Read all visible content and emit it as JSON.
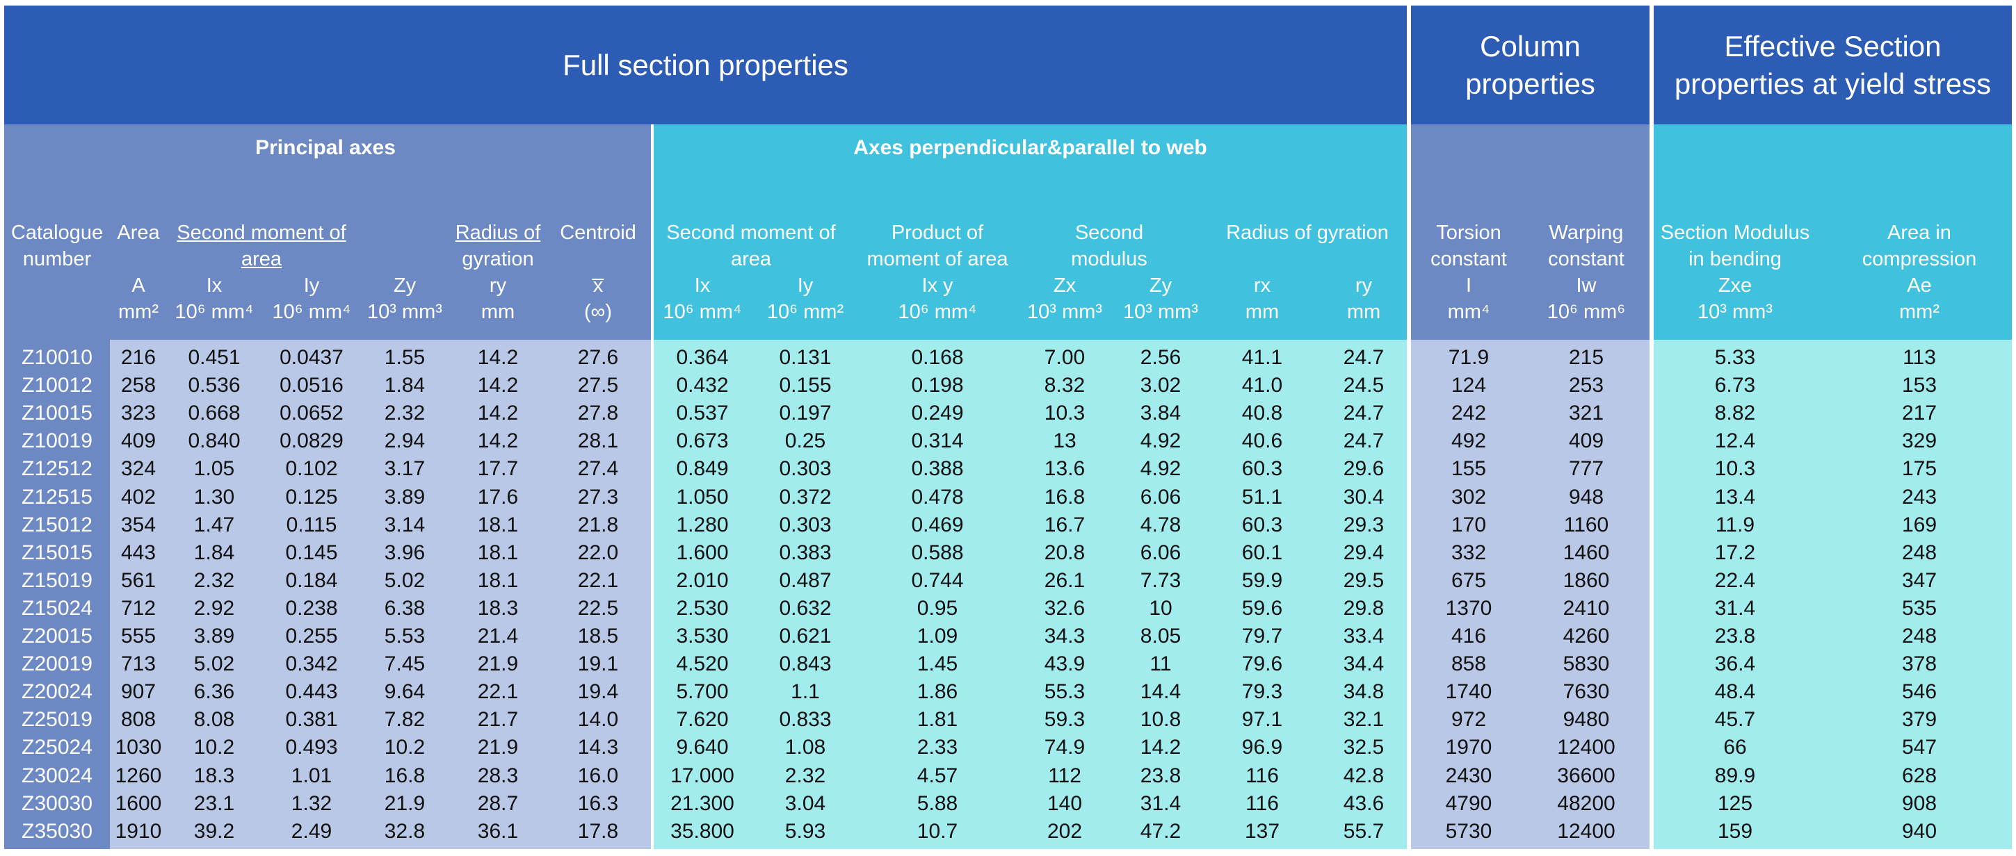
{
  "titles": {
    "full": "Full section properties",
    "column_l1": "Column",
    "column_l2": "properties",
    "eff_l1": "Effective Section",
    "eff_l2": "properties at yield stress"
  },
  "subtitles": {
    "principal": "Principal axes",
    "web": "Axes perpendicular&parallel to web"
  },
  "headers": {
    "cat_l1": "Catalogue",
    "cat_l2": "number",
    "area": "Area",
    "area_sym": "A",
    "area_unit": "mm²",
    "smoa_l1": "Second moment of",
    "smoa_l2": "area",
    "ix": "Ix",
    "ix_unit": "10⁶ mm⁴",
    "iy": "Iy",
    "iy_unit": "10⁶ mm⁴",
    "zy": "Zy",
    "zy_unit": "10³ mm³",
    "rog_l1": "Radius of",
    "rog_l2": "gyration",
    "ry": "ry",
    "ry_unit": "mm",
    "centroid": "Centroid",
    "centroid_sym": "x̅",
    "centroid_unit": "(∞)",
    "w_smoa_l1": "Second moment of",
    "w_smoa_l2": "area",
    "w_ix": "Ix",
    "w_ix_unit": "10⁶ mm⁴",
    "w_iy": "Iy",
    "w_iy_unit": "10⁶ mm²",
    "pmoa_l1": "Product of",
    "pmoa_l2": "moment of area",
    "ixy": "Ix y",
    "ixy_unit": "10⁶ mm⁴",
    "sm_l1": "Second",
    "sm_l2": "modulus",
    "zx": "Zx",
    "zx_unit": "10³ mm³",
    "w_zy": "Zy",
    "w_zy_unit": "10³ mm³",
    "w_rog": "Radius of gyration",
    "rx": "rx",
    "rx_unit": "mm",
    "w_ry": "ry",
    "w_ry_unit": "mm",
    "tc_l1": "Torsion",
    "tc_l2": "constant",
    "tc_sym": "I",
    "tc_unit": "mm⁴",
    "wc_l1": "Warping",
    "wc_l2": "constant",
    "wc_sym": "Iw",
    "wc_unit": "10⁶ mm⁶",
    "smb_l1": "Section Modulus",
    "smb_l2": "in bending",
    "zxe": "Zxe",
    "zxe_unit": "10³ mm³",
    "aic_l1": "Area in",
    "aic_l2": "compression",
    "ae": "Ae",
    "ae_unit": "mm²"
  },
  "rows": [
    [
      "Z10010",
      "216",
      "0.451",
      "0.0437",
      "1.55",
      "14.2",
      "27.6",
      "0.364",
      "0.131",
      "0.168",
      "7.00",
      "2.56",
      "41.1",
      "24.7",
      "71.9",
      "215",
      "5.33",
      "113"
    ],
    [
      "Z10012",
      "258",
      "0.536",
      "0.0516",
      "1.84",
      "14.2",
      "27.5",
      "0.432",
      "0.155",
      "0.198",
      "8.32",
      "3.02",
      "41.0",
      "24.5",
      "124",
      "253",
      "6.73",
      "153"
    ],
    [
      "Z10015",
      "323",
      "0.668",
      "0.0652",
      "2.32",
      "14.2",
      "27.8",
      "0.537",
      "0.197",
      "0.249",
      "10.3",
      "3.84",
      "40.8",
      "24.7",
      "242",
      "321",
      "8.82",
      "217"
    ],
    [
      "Z10019",
      "409",
      "0.840",
      "0.0829",
      "2.94",
      "14.2",
      "28.1",
      "0.673",
      "0.25",
      "0.314",
      "13",
      "4.92",
      "40.6",
      "24.7",
      "492",
      "409",
      "12.4",
      "329"
    ],
    [
      "Z12512",
      "324",
      "1.05",
      "0.102",
      "3.17",
      "17.7",
      "27.4",
      "0.849",
      "0.303",
      "0.388",
      "13.6",
      "4.92",
      "60.3",
      "29.6",
      "155",
      "777",
      "10.3",
      "175"
    ],
    [
      "Z12515",
      "402",
      "1.30",
      "0.125",
      "3.89",
      "17.6",
      "27.3",
      "1.050",
      "0.372",
      "0.478",
      "16.8",
      "6.06",
      "51.1",
      "30.4",
      "302",
      "948",
      "13.4",
      "243"
    ],
    [
      "Z15012",
      "354",
      "1.47",
      "0.115",
      "3.14",
      "18.1",
      "21.8",
      "1.280",
      "0.303",
      "0.469",
      "16.7",
      "4.78",
      "60.3",
      "29.3",
      "170",
      "1160",
      "11.9",
      "169"
    ],
    [
      "Z15015",
      "443",
      "1.84",
      "0.145",
      "3.96",
      "18.1",
      "22.0",
      "1.600",
      "0.383",
      "0.588",
      "20.8",
      "6.06",
      "60.1",
      "29.4",
      "332",
      "1460",
      "17.2",
      "248"
    ],
    [
      "Z15019",
      "561",
      "2.32",
      "0.184",
      "5.02",
      "18.1",
      "22.1",
      "2.010",
      "0.487",
      "0.744",
      "26.1",
      "7.73",
      "59.9",
      "29.5",
      "675",
      "1860",
      "22.4",
      "347"
    ],
    [
      "Z15024",
      "712",
      "2.92",
      "0.238",
      "6.38",
      "18.3",
      "22.5",
      "2.530",
      "0.632",
      "0.95",
      "32.6",
      "10",
      "59.6",
      "29.8",
      "1370",
      "2410",
      "31.4",
      "535"
    ],
    [
      "Z20015",
      "555",
      "3.89",
      "0.255",
      "5.53",
      "21.4",
      "18.5",
      "3.530",
      "0.621",
      "1.09",
      "34.3",
      "8.05",
      "79.7",
      "33.4",
      "416",
      "4260",
      "23.8",
      "248"
    ],
    [
      "Z20019",
      "713",
      "5.02",
      "0.342",
      "7.45",
      "21.9",
      "19.1",
      "4.520",
      "0.843",
      "1.45",
      "43.9",
      "11",
      "79.6",
      "34.4",
      "858",
      "5830",
      "36.4",
      "378"
    ],
    [
      "Z20024",
      "907",
      "6.36",
      "0.443",
      "9.64",
      "22.1",
      "19.4",
      "5.700",
      "1.1",
      "1.86",
      "55.3",
      "14.4",
      "79.3",
      "34.8",
      "1740",
      "7630",
      "48.4",
      "546"
    ],
    [
      "Z25019",
      "808",
      "8.08",
      "0.381",
      "7.82",
      "21.7",
      "14.0",
      "7.620",
      "0.833",
      "1.81",
      "59.3",
      "10.8",
      "97.1",
      "32.1",
      "972",
      "9480",
      "45.7",
      "379"
    ],
    [
      "Z25024",
      "1030",
      "10.2",
      "0.493",
      "10.2",
      "21.9",
      "14.3",
      "9.640",
      "1.08",
      "2.33",
      "74.9",
      "14.2",
      "96.9",
      "32.5",
      "1970",
      "12400",
      "66",
      "547"
    ],
    [
      "Z30024",
      "1260",
      "18.3",
      "1.01",
      "16.8",
      "28.3",
      "16.0",
      "17.000",
      "2.32",
      "4.57",
      "112",
      "23.8",
      "116",
      "42.8",
      "2430",
      "36600",
      "89.9",
      "628"
    ],
    [
      "Z30030",
      "1600",
      "23.1",
      "1.32",
      "21.9",
      "28.7",
      "16.3",
      "21.300",
      "3.04",
      "5.88",
      "140",
      "31.4",
      "116",
      "43.6",
      "4790",
      "48200",
      "125",
      "908"
    ],
    [
      "Z35030",
      "1910",
      "39.2",
      "2.49",
      "32.8",
      "36.1",
      "17.8",
      "35.800",
      "5.93",
      "10.7",
      "202",
      "47.2",
      "137",
      "55.7",
      "5730",
      "12400",
      "159",
      "940"
    ]
  ]
}
